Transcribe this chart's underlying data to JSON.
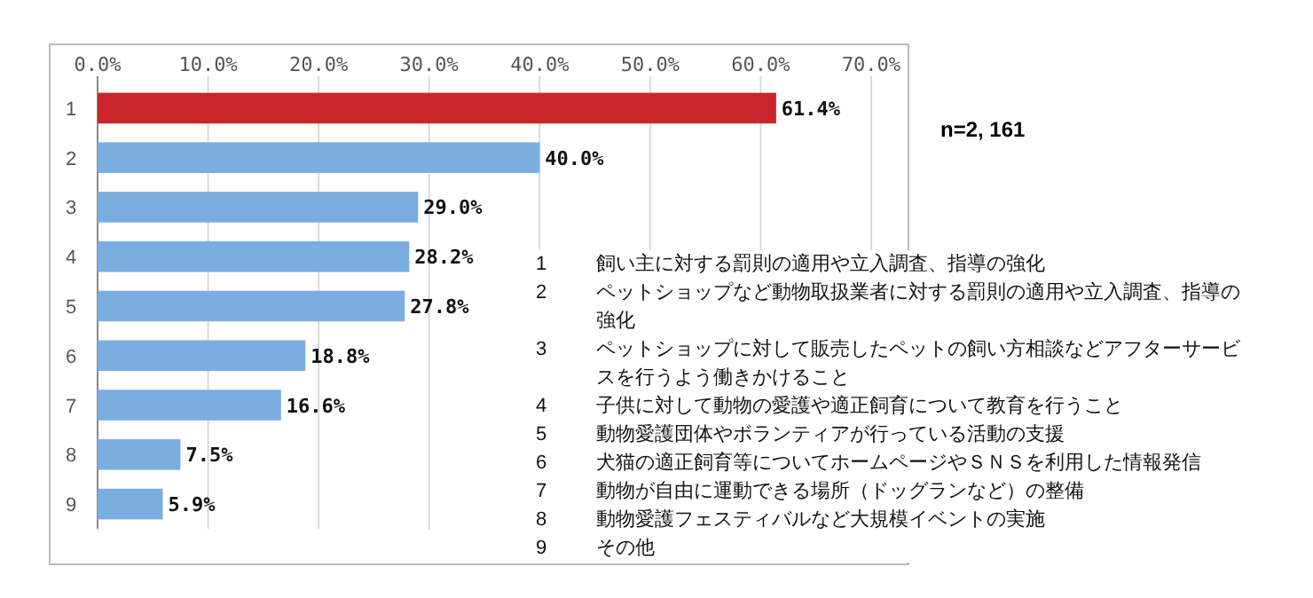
{
  "chart_data": {
    "type": "bar",
    "orientation": "horizontal",
    "categories": [
      "1",
      "2",
      "3",
      "4",
      "5",
      "6",
      "7",
      "8",
      "9"
    ],
    "values": [
      61.4,
      40.0,
      29.0,
      28.2,
      27.8,
      18.8,
      16.6,
      7.5,
      5.9
    ],
    "colors": [
      "#c8262a",
      "#7aaee0",
      "#7aaee0",
      "#7aaee0",
      "#7aaee0",
      "#7aaee0",
      "#7aaee0",
      "#7aaee0",
      "#7aaee0"
    ],
    "value_labels": [
      "61.4%",
      "40.0%",
      "29.0%",
      "28.2%",
      "27.8%",
      "18.8%",
      "16.6%",
      "7.5%",
      "5.9%"
    ],
    "xlim": [
      0,
      70
    ],
    "xticks": [
      {
        "value": 0,
        "label": "0.0%"
      },
      {
        "value": 10,
        "label": "10.0%"
      },
      {
        "value": 20,
        "label": "20.0%"
      },
      {
        "value": 30,
        "label": "30.0%"
      },
      {
        "value": 40,
        "label": "40.0%"
      },
      {
        "value": 50,
        "label": "50.0%"
      },
      {
        "value": 60,
        "label": "60.0%"
      },
      {
        "value": 70,
        "label": "70.0%"
      }
    ],
    "grid": "x",
    "annotations": [
      "n=2, 161",
      "1 飼い主に対する罰則の適用や立入調査、指導の強化",
      "2 ペットショップなど動物取扱業者に対する罰則の適用や立入調査、指導の強化",
      "3 ペットショップに対して販売したペットの飼い方相談などアフターサービスを行うよう働きかけること",
      "4 子供に対して動物の愛護や適正飼育について教育を行うこと",
      "5 動物愛護団体やボランティアが行っている活動の支援",
      "6 犬猫の適正飼育等についてホームページやＳＮＳを利用した情報発信",
      "7 動物が自由に運動できる場所（ドッグランなど）の整備",
      "8 動物愛護フェスティバルなど大規模イベントの実施",
      "9 その他"
    ]
  }
}
